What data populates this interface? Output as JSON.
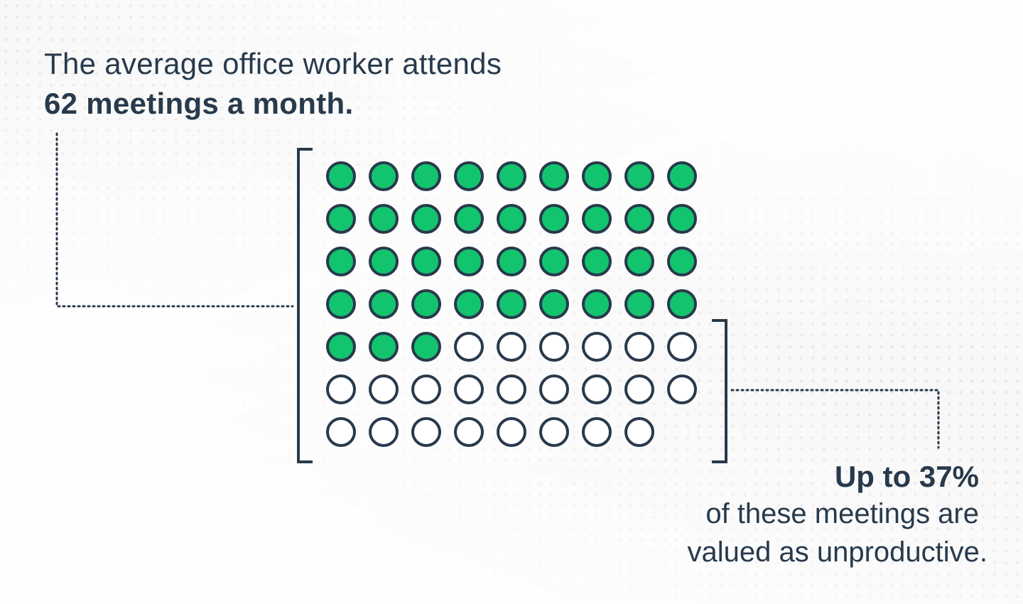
{
  "headline": {
    "line1": "The average office worker attends",
    "line2": "62 meetings a month."
  },
  "stat": {
    "value": "Up to 37%",
    "line1": "of these meetings are",
    "line2": "valued as unproductive."
  },
  "dot_grid": {
    "total": 62,
    "filled": 39,
    "columns": 9
  },
  "colors": {
    "text": "#283a4c",
    "filled": "#12c46e",
    "outline": "#283a4c",
    "empty_fill": "#ffffff"
  }
}
